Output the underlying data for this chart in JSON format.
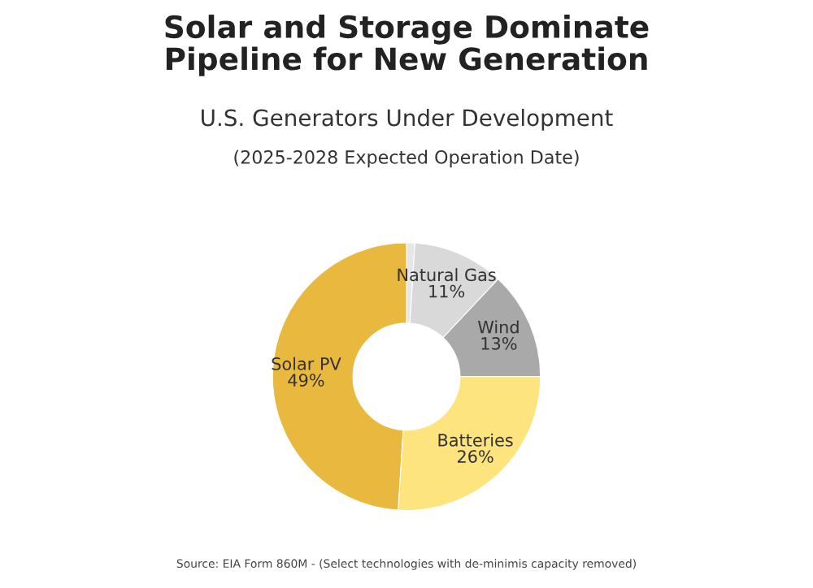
{
  "chart_data": {
    "type": "donut",
    "title": "Solar and Storage Dominate\nPipeline for New Generation",
    "subtitle": "U.S. Generators Under Development",
    "annotations": [
      "(2025-2028 Expected Operation Date)",
      "Source: EIA Form 860M - (Select technologies with de-minimis capacity removed)"
    ],
    "categories": [
      null,
      "Natural Gas",
      "Wind",
      "Batteries",
      "Solar PV"
    ],
    "values": [
      1,
      11,
      13,
      26,
      49
    ],
    "value_labels": [
      null,
      "11%",
      "13%",
      "26%",
      "49%"
    ],
    "colors": [
      "#e6e6e6",
      "#d9d9d9",
      "#a9a9a9",
      "#fde47f",
      "#e8b83f"
    ],
    "legend": false
  }
}
